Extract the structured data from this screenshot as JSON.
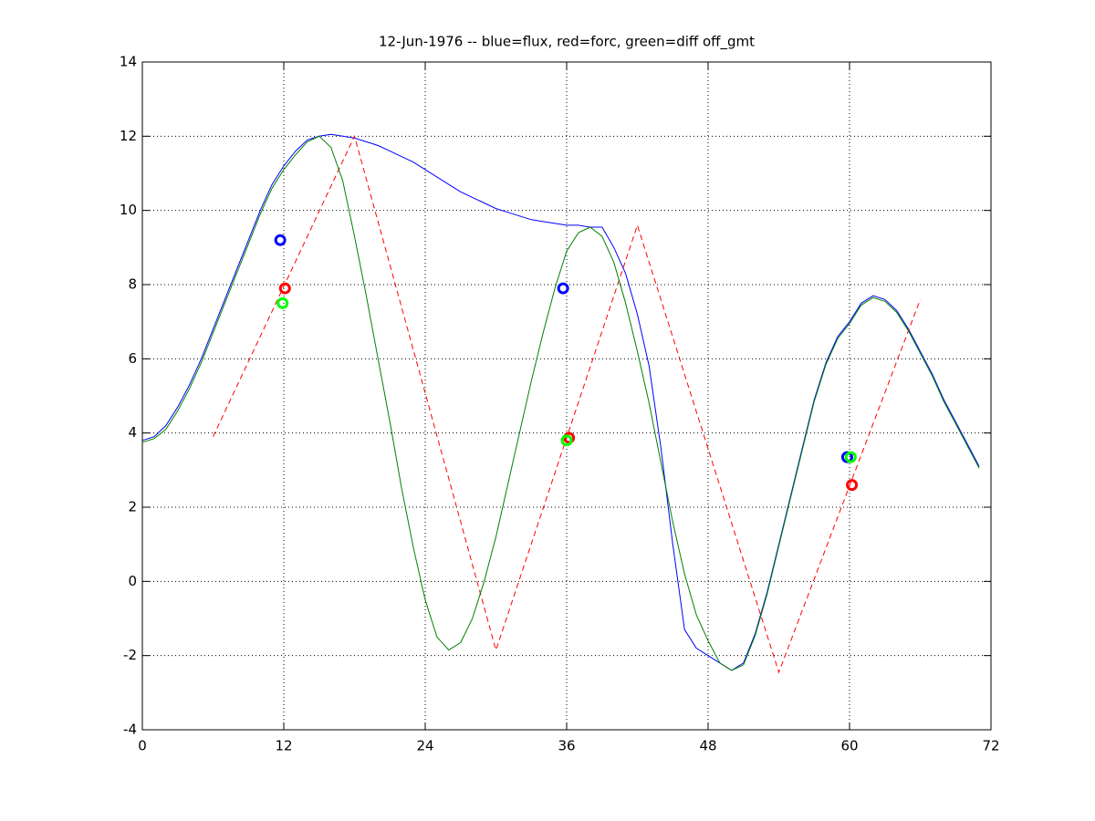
{
  "chart_data": {
    "type": "line",
    "title": "12-Jun-1976 -- blue=flux, red=forc, green=diff off_gmt",
    "xlim": [
      0,
      72
    ],
    "xticks": [
      0,
      12,
      24,
      36,
      48,
      60,
      72
    ],
    "ylim": [
      -4,
      14
    ],
    "yticks": [
      -4,
      -2,
      0,
      2,
      4,
      6,
      8,
      10,
      12,
      14
    ],
    "grid": true,
    "series": [
      {
        "color": "#0000ff",
        "dash": false,
        "marker_color": "#0000ff",
        "x": [
          0,
          1,
          2,
          3,
          4,
          5,
          6,
          7,
          8,
          9,
          10,
          11,
          12,
          13,
          14,
          15,
          16,
          17,
          18,
          19,
          20,
          21,
          22,
          23,
          24,
          25,
          26,
          27,
          28,
          29,
          30,
          31,
          32,
          33,
          34,
          35,
          36,
          37,
          38,
          39,
          40,
          41,
          42,
          43,
          44,
          45,
          46,
          47,
          48,
          49,
          50,
          51,
          52,
          53,
          54,
          55,
          56,
          57,
          58,
          59,
          60,
          61,
          62,
          63,
          64,
          65,
          66,
          67,
          68,
          69,
          70,
          71
        ],
        "values": [
          3.8,
          3.9,
          4.2,
          4.7,
          5.3,
          6.0,
          6.8,
          7.6,
          8.4,
          9.2,
          10.0,
          10.7,
          11.2,
          11.6,
          11.9,
          12.0,
          12.05,
          12.0,
          11.95,
          11.85,
          11.75,
          11.6,
          11.45,
          11.3,
          11.1,
          10.9,
          10.7,
          10.5,
          10.35,
          10.2,
          10.05,
          9.95,
          9.85,
          9.75,
          9.7,
          9.65,
          9.6,
          9.6,
          9.55,
          9.55,
          9.0,
          8.3,
          7.2,
          5.8,
          3.6,
          1.0,
          -1.3,
          -1.8,
          -2.0,
          -2.2,
          -2.4,
          -2.2,
          -1.4,
          -0.3,
          1.0,
          2.3,
          3.6,
          4.9,
          5.9,
          6.6,
          7.0,
          7.5,
          7.7,
          7.6,
          7.3,
          6.8,
          6.2,
          5.6,
          4.9,
          4.3,
          3.7,
          3.1
        ],
        "marker_x": [
          11.7,
          35.7,
          59.8
        ],
        "marker_values": [
          9.2,
          7.9,
          3.35
        ]
      },
      {
        "color": "#ff0000",
        "dash": true,
        "marker_color": "#ff0000",
        "x": [
          6,
          18,
          30,
          42,
          54,
          66
        ],
        "values": [
          3.9,
          12.0,
          -1.85,
          9.6,
          -2.45,
          7.6
        ],
        "marker_x": [
          12.1,
          36.2,
          60.2
        ],
        "marker_values": [
          7.9,
          3.87,
          2.6
        ]
      },
      {
        "color": "#008000",
        "dash": false,
        "marker_color": "#00ff00",
        "x": [
          0,
          1,
          2,
          3,
          4,
          5,
          6,
          7,
          8,
          9,
          10,
          11,
          12,
          13,
          14,
          15,
          16,
          17,
          18,
          19,
          20,
          21,
          22,
          23,
          24,
          25,
          26,
          27,
          28,
          29,
          30,
          31,
          32,
          33,
          34,
          35,
          36,
          37,
          38,
          39,
          40,
          41,
          42,
          43,
          44,
          45,
          46,
          47,
          48,
          49,
          50,
          51,
          52,
          53,
          54,
          55,
          56,
          57,
          58,
          59,
          60,
          61,
          62,
          63,
          64,
          65,
          66,
          67,
          68,
          69,
          70,
          71
        ],
        "values": [
          3.75,
          3.85,
          4.1,
          4.6,
          5.2,
          5.9,
          6.7,
          7.5,
          8.3,
          9.1,
          9.9,
          10.6,
          11.1,
          11.5,
          11.85,
          12.0,
          11.7,
          10.8,
          9.3,
          7.7,
          6.0,
          4.3,
          2.5,
          0.9,
          -0.5,
          -1.5,
          -1.85,
          -1.65,
          -1.0,
          0.0,
          1.2,
          2.6,
          4.0,
          5.4,
          6.7,
          7.9,
          8.9,
          9.4,
          9.55,
          9.3,
          8.6,
          7.5,
          6.2,
          4.8,
          3.2,
          1.6,
          0.2,
          -0.9,
          -1.6,
          -2.2,
          -2.4,
          -2.25,
          -1.45,
          -0.35,
          0.95,
          2.25,
          3.55,
          4.85,
          5.85,
          6.55,
          6.95,
          7.45,
          7.65,
          7.55,
          7.25,
          6.75,
          6.15,
          5.55,
          4.85,
          4.25,
          3.65,
          3.05
        ],
        "marker_x": [
          11.9,
          36.0,
          60.1
        ],
        "marker_values": [
          7.5,
          3.8,
          3.35
        ]
      }
    ]
  }
}
